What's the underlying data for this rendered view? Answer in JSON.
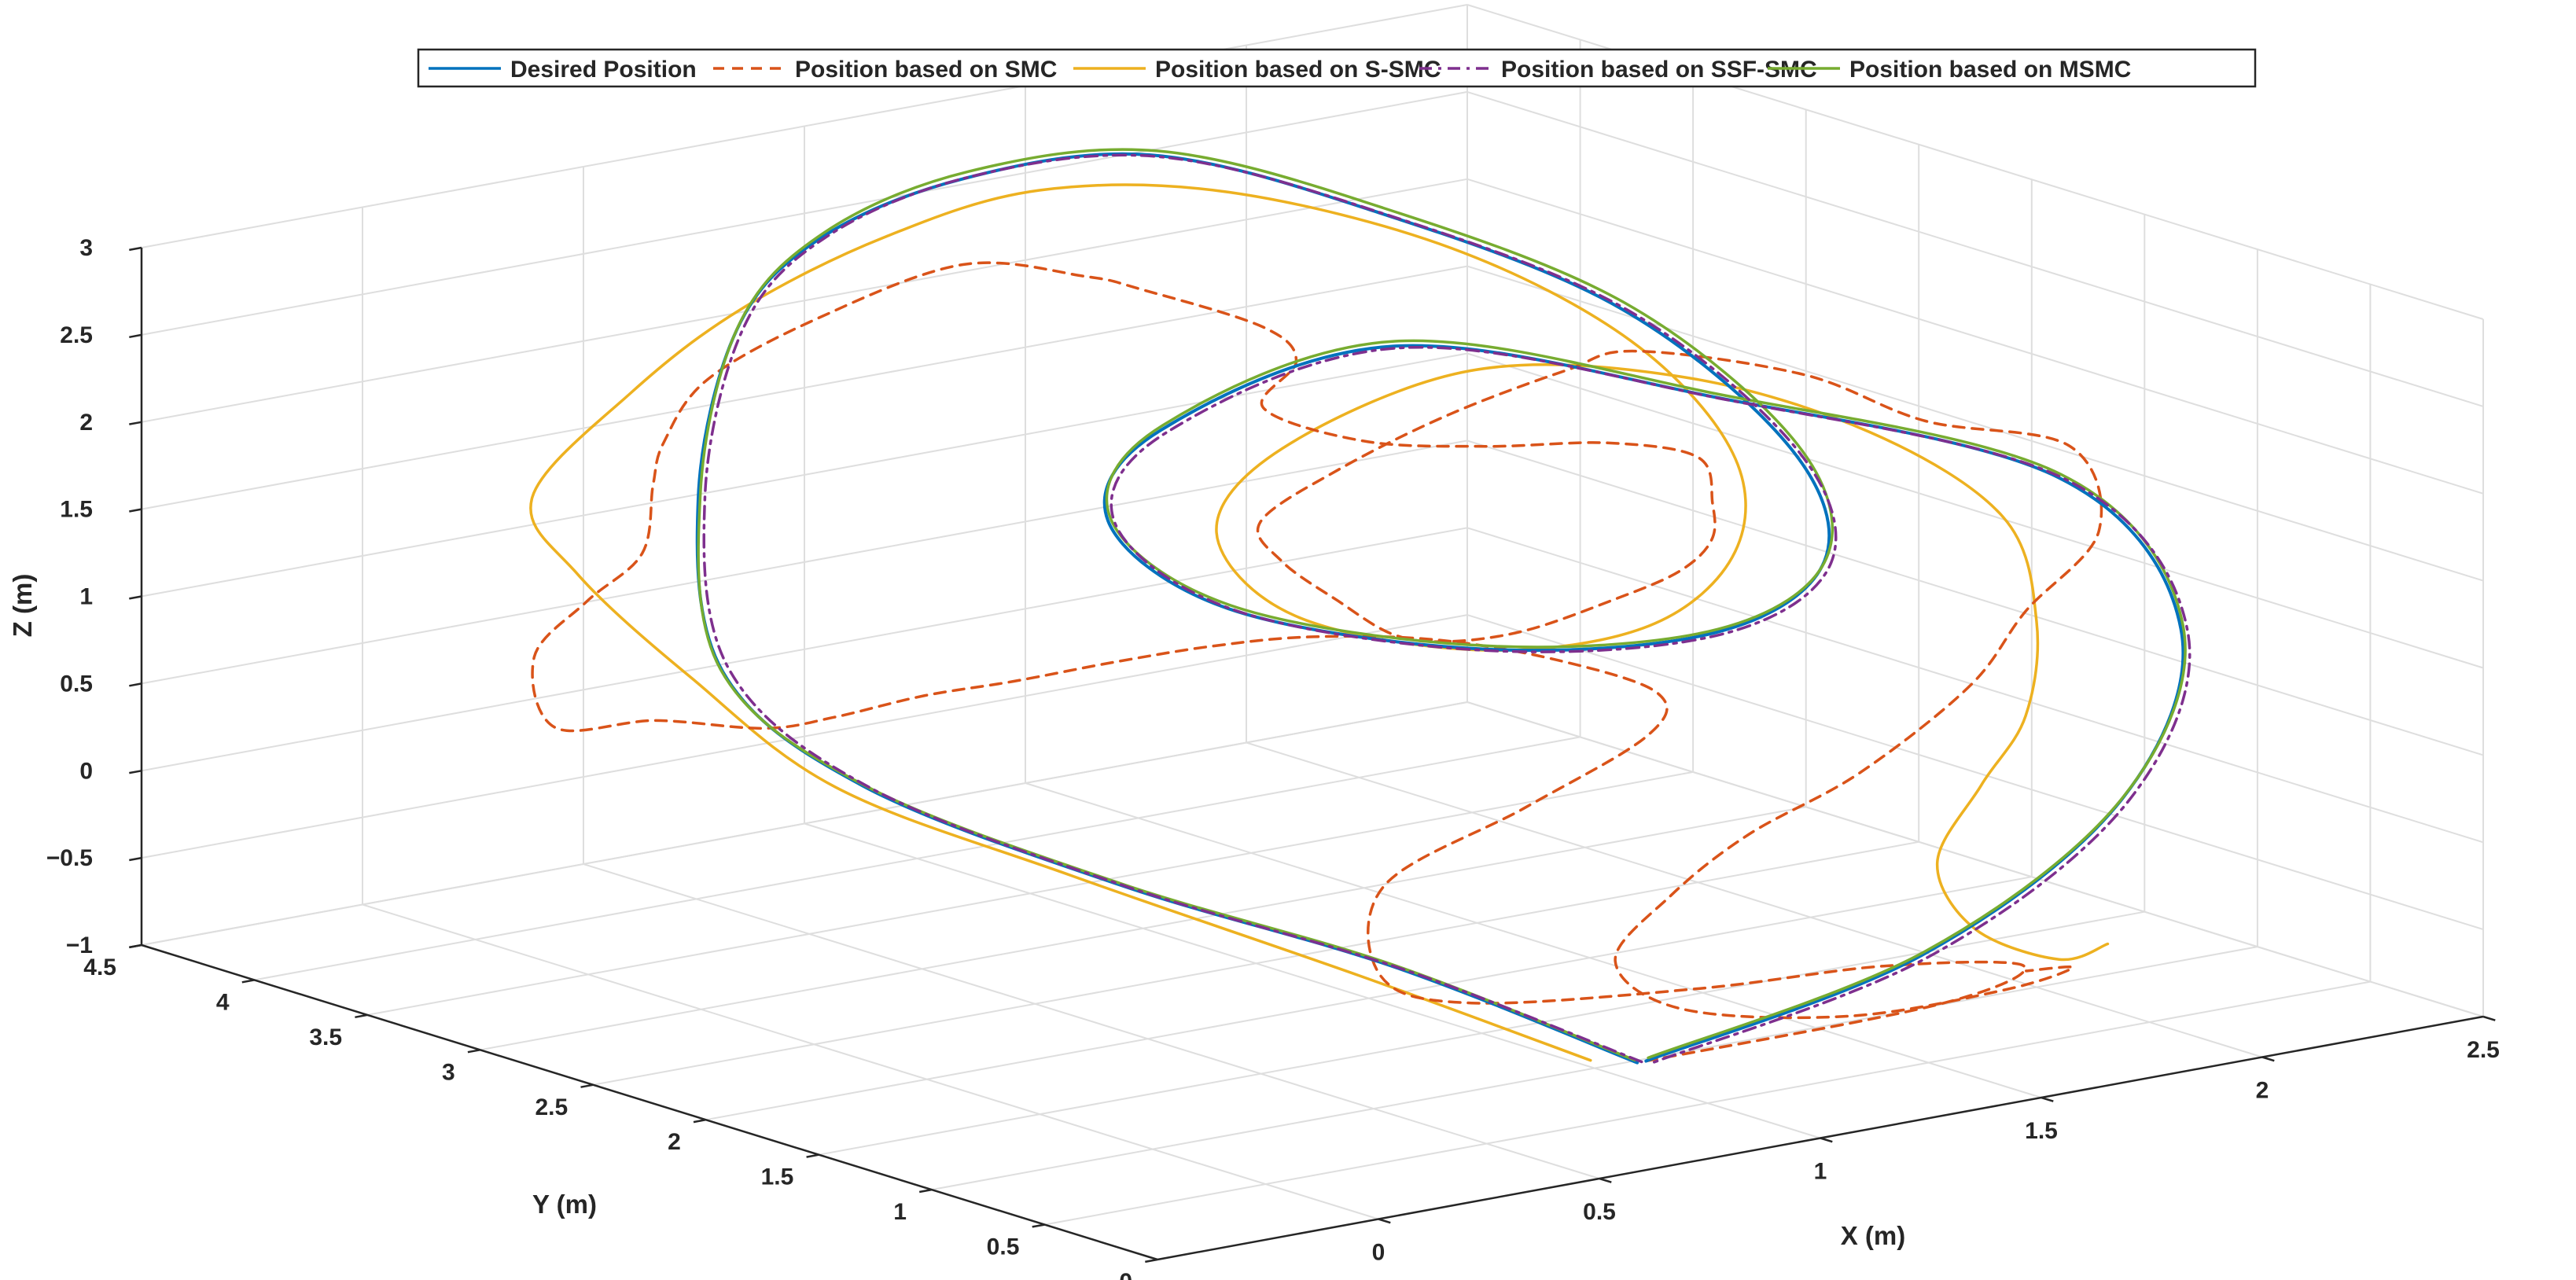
{
  "chart_data": {
    "type": "line",
    "subtype": "3d-line",
    "title": "",
    "xlabel": "X (m)",
    "ylabel": "Y (m)",
    "zlabel": "Z (m)",
    "xlim": [
      -0.5,
      2.5
    ],
    "ylim": [
      0,
      4.5
    ],
    "zlim": [
      -1,
      3
    ],
    "xticks": [
      "0",
      "0.5",
      "1",
      "1.5",
      "2",
      "2.5"
    ],
    "yticks": [
      "0",
      "0.5",
      "1",
      "1.5",
      "2",
      "2.5",
      "3",
      "3.5",
      "4",
      "4.5"
    ],
    "zticks": [
      "−1",
      "−0.5",
      "0",
      "0.5",
      "1",
      "1.5",
      "2",
      "2.5",
      "3"
    ],
    "grid": true,
    "legend_position": "top",
    "series": [
      {
        "name": "Desired Position",
        "color": "#0072BD",
        "dash": "solid",
        "points": [
          [
            1.03,
            0.87,
            -0.93
          ],
          [
            0.7,
            1.3,
            -0.4
          ],
          [
            0.35,
            1.82,
            0.02
          ],
          [
            0.12,
            2.52,
            0.42
          ],
          [
            0.1,
            3.1,
            0.85
          ],
          [
            0.3,
            3.6,
            1.55
          ],
          [
            0.55,
            3.92,
            2.27
          ],
          [
            0.8,
            4.05,
            2.62
          ],
          [
            1.1,
            4.0,
            2.85
          ],
          [
            1.4,
            3.75,
            2.95
          ],
          [
            1.7,
            3.35,
            2.65
          ],
          [
            1.95,
            2.75,
            2.22
          ],
          [
            1.98,
            2.05,
            1.68
          ],
          [
            1.75,
            1.45,
            1.38
          ],
          [
            1.3,
            1.05,
            1.34
          ],
          [
            0.75,
            1.0,
            1.52
          ],
          [
            0.3,
            1.25,
            1.86
          ],
          [
            0.18,
            1.55,
            2.3
          ],
          [
            0.35,
            1.65,
            2.7
          ],
          [
            0.85,
            1.6,
            2.97
          ],
          [
            1.45,
            1.35,
            2.5
          ],
          [
            2.05,
            1.0,
            1.9
          ],
          [
            2.25,
            0.85,
            1.0
          ],
          [
            2.1,
            0.82,
            0.1
          ],
          [
            1.65,
            0.82,
            -0.58
          ],
          [
            1.05,
            0.87,
            -0.93
          ]
        ]
      },
      {
        "name": "Position based on SMC",
        "color": "#D95319",
        "dash": "dashed",
        "points": [
          [
            1.05,
            0.87,
            -0.93
          ],
          [
            1.7,
            0.85,
            -0.9
          ],
          [
            1.92,
            0.9,
            -0.8
          ],
          [
            1.68,
            1.05,
            -0.75
          ],
          [
            1.3,
            1.12,
            -0.73
          ],
          [
            0.9,
            1.35,
            -0.72
          ],
          [
            0.72,
            1.4,
            -0.5
          ],
          [
            0.78,
            1.5,
            -0.05
          ],
          [
            1.1,
            1.5,
            0.25
          ],
          [
            1.4,
            1.55,
            0.5
          ],
          [
            1.45,
            1.6,
            0.7
          ],
          [
            1.3,
            1.75,
            0.9
          ],
          [
            1.1,
            1.9,
            1.05
          ],
          [
            0.9,
            2.05,
            1.1
          ],
          [
            0.7,
            2.1,
            1.12
          ],
          [
            0.5,
            2.15,
            1.1
          ],
          [
            0.35,
            2.3,
            1.0
          ],
          [
            0.3,
            2.6,
            0.82
          ],
          [
            0.25,
            2.9,
            0.6
          ],
          [
            0.22,
            3.15,
            0.45
          ],
          [
            0.1,
            3.4,
            0.45
          ],
          [
            -0.05,
            3.55,
            0.42
          ],
          [
            -0.02,
            3.7,
            0.75
          ],
          [
            0.15,
            3.8,
            0.95
          ],
          [
            0.25,
            3.75,
            1.2
          ],
          [
            0.3,
            3.8,
            1.55
          ],
          [
            0.35,
            3.85,
            1.75
          ],
          [
            0.5,
            3.95,
            2.0
          ],
          [
            0.7,
            3.85,
            2.3
          ],
          [
            0.95,
            3.7,
            2.55
          ],
          [
            1.15,
            3.55,
            2.45
          ],
          [
            1.25,
            3.5,
            2.35
          ],
          [
            1.45,
            3.35,
            2.1
          ],
          [
            1.5,
            3.3,
            1.9
          ],
          [
            1.4,
            3.25,
            1.7
          ],
          [
            1.55,
            3.1,
            1.5
          ],
          [
            1.7,
            2.85,
            1.5
          ],
          [
            1.85,
            2.6,
            1.55
          ],
          [
            1.95,
            2.4,
            1.5
          ],
          [
            1.88,
            2.2,
            1.35
          ],
          [
            1.75,
            1.95,
            1.3
          ],
          [
            1.6,
            1.8,
            1.25
          ],
          [
            1.4,
            1.7,
            1.22
          ],
          [
            1.15,
            1.6,
            1.2
          ],
          [
            0.95,
            1.55,
            1.25
          ],
          [
            0.8,
            1.5,
            1.38
          ],
          [
            0.7,
            1.55,
            1.6
          ],
          [
            0.6,
            1.6,
            1.85
          ],
          [
            0.55,
            1.6,
            2.1
          ],
          [
            0.7,
            1.55,
            2.35
          ],
          [
            0.95,
            1.55,
            2.55
          ],
          [
            1.2,
            1.52,
            2.7
          ],
          [
            1.35,
            1.5,
            2.75
          ],
          [
            1.6,
            1.25,
            2.6
          ],
          [
            1.8,
            1.1,
            2.3
          ],
          [
            2.05,
            0.95,
            2.1
          ],
          [
            2.1,
            0.92,
            1.6
          ],
          [
            1.95,
            0.95,
            1.2
          ],
          [
            1.85,
            1.0,
            0.8
          ],
          [
            1.65,
            1.1,
            0.35
          ],
          [
            1.45,
            1.2,
            0.05
          ],
          [
            1.3,
            1.25,
            -0.25
          ],
          [
            1.2,
            1.3,
            -0.6
          ],
          [
            1.3,
            1.2,
            -0.88
          ],
          [
            1.6,
            1.05,
            -1.0
          ],
          [
            1.9,
            0.95,
            -0.95
          ],
          [
            2.02,
            0.88,
            -0.85
          ],
          [
            1.9,
            0.85,
            -0.8
          ]
        ]
      },
      {
        "name": "Position based on S-SMC",
        "color": "#EDB120",
        "dash": "solid",
        "points": [
          [
            0.95,
            0.92,
            -0.9
          ],
          [
            0.65,
            1.35,
            -0.45
          ],
          [
            0.3,
            1.95,
            0.05
          ],
          [
            0.05,
            2.5,
            0.45
          ],
          [
            -0.05,
            2.95,
            0.95
          ],
          [
            -0.1,
            3.35,
            1.4
          ],
          [
            -0.05,
            3.65,
            1.7
          ],
          [
            0.25,
            3.8,
            2.1
          ],
          [
            0.55,
            3.9,
            2.4
          ],
          [
            0.9,
            3.95,
            2.63
          ],
          [
            1.2,
            3.85,
            2.8
          ],
          [
            1.5,
            3.6,
            2.75
          ],
          [
            1.8,
            3.2,
            2.45
          ],
          [
            1.95,
            2.7,
            2.05
          ],
          [
            1.9,
            2.15,
            1.65
          ],
          [
            1.65,
            1.65,
            1.4
          ],
          [
            1.25,
            1.25,
            1.32
          ],
          [
            0.8,
            1.1,
            1.45
          ],
          [
            0.45,
            1.25,
            1.75
          ],
          [
            0.4,
            1.5,
            2.15
          ],
          [
            0.6,
            1.6,
            2.5
          ],
          [
            1.0,
            1.55,
            2.78
          ],
          [
            1.4,
            1.4,
            2.62
          ],
          [
            1.75,
            1.25,
            2.2
          ],
          [
            1.95,
            1.05,
            1.7
          ],
          [
            2.0,
            1.0,
            1.1
          ],
          [
            1.95,
            0.95,
            0.6
          ],
          [
            1.85,
            0.95,
            0.25
          ],
          [
            1.75,
            0.95,
            -0.15
          ],
          [
            1.82,
            0.92,
            -0.55
          ],
          [
            2.0,
            0.9,
            -0.8
          ],
          [
            2.1,
            0.88,
            -0.75
          ]
        ]
      },
      {
        "name": "Position based on SSF-SMC",
        "color": "#7E2F8E",
        "dash": "dashdot",
        "points": [
          [
            1.04,
            0.87,
            -0.93
          ],
          [
            0.71,
            1.29,
            -0.41
          ],
          [
            0.36,
            1.81,
            0.01
          ],
          [
            0.13,
            2.51,
            0.41
          ],
          [
            0.11,
            3.09,
            0.86
          ],
          [
            0.31,
            3.59,
            1.56
          ],
          [
            0.56,
            3.91,
            2.28
          ],
          [
            0.81,
            4.04,
            2.63
          ],
          [
            1.11,
            3.99,
            2.86
          ],
          [
            1.41,
            3.74,
            2.94
          ],
          [
            1.71,
            3.34,
            2.64
          ],
          [
            1.96,
            2.74,
            2.21
          ],
          [
            1.99,
            2.04,
            1.67
          ],
          [
            1.76,
            1.44,
            1.37
          ],
          [
            1.31,
            1.04,
            1.33
          ],
          [
            0.76,
            0.99,
            1.51
          ],
          [
            0.31,
            1.24,
            1.85
          ],
          [
            0.19,
            1.54,
            2.29
          ],
          [
            0.36,
            1.64,
            2.69
          ],
          [
            0.86,
            1.59,
            2.96
          ],
          [
            1.46,
            1.34,
            2.49
          ],
          [
            2.06,
            0.99,
            1.89
          ],
          [
            2.26,
            0.84,
            0.99
          ],
          [
            2.11,
            0.81,
            0.09
          ],
          [
            1.66,
            0.81,
            -0.59
          ],
          [
            1.06,
            0.86,
            -0.94
          ]
        ]
      },
      {
        "name": "Position based on MSMC",
        "color": "#77AC30",
        "dash": "solid",
        "points": [
          [
            1.03,
            0.88,
            -0.92
          ],
          [
            0.7,
            1.31,
            -0.39
          ],
          [
            0.35,
            1.83,
            0.03
          ],
          [
            0.12,
            2.53,
            0.43
          ],
          [
            0.1,
            3.11,
            0.86
          ],
          [
            0.31,
            3.61,
            1.57
          ],
          [
            0.56,
            3.93,
            2.29
          ],
          [
            0.82,
            4.06,
            2.65
          ],
          [
            1.12,
            4.01,
            2.88
          ],
          [
            1.42,
            3.76,
            2.96
          ],
          [
            1.72,
            3.36,
            2.66
          ],
          [
            1.97,
            2.76,
            2.23
          ],
          [
            2.0,
            2.06,
            1.69
          ],
          [
            1.76,
            1.46,
            1.39
          ],
          [
            1.31,
            1.06,
            1.35
          ],
          [
            0.76,
            1.01,
            1.53
          ],
          [
            0.31,
            1.26,
            1.87
          ],
          [
            0.19,
            1.56,
            2.31
          ],
          [
            0.36,
            1.66,
            2.72
          ],
          [
            0.86,
            1.61,
            2.99
          ],
          [
            1.46,
            1.36,
            2.51
          ],
          [
            2.06,
            1.01,
            1.91
          ],
          [
            2.26,
            0.86,
            1.01
          ],
          [
            2.11,
            0.83,
            0.11
          ],
          [
            1.66,
            0.83,
            -0.57
          ],
          [
            1.06,
            0.88,
            -0.92
          ]
        ]
      }
    ]
  }
}
